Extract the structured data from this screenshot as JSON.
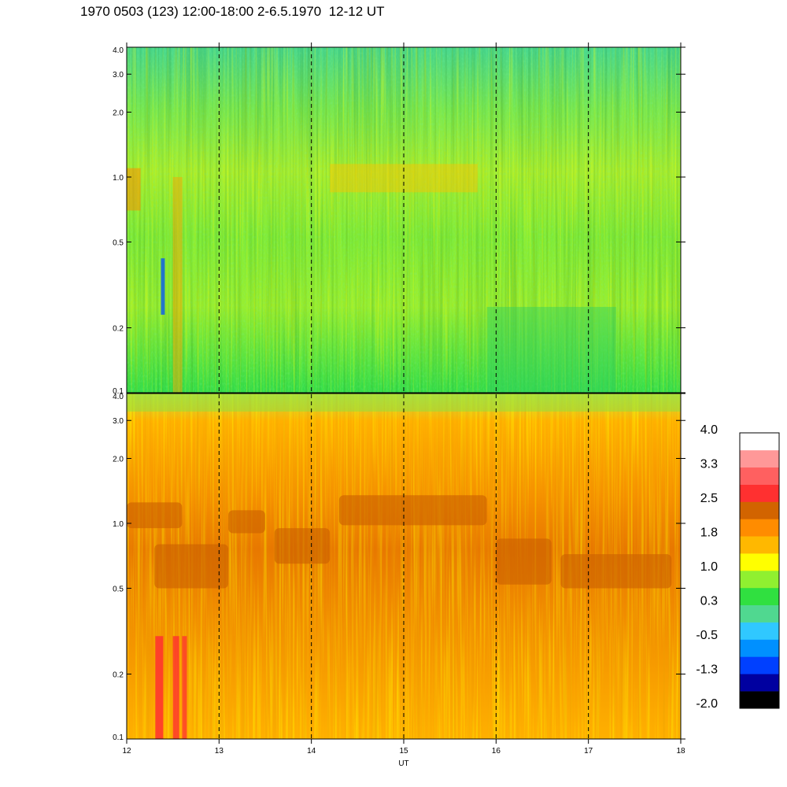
{
  "title": "1970 0503 (123) 12:00-18:00 2-6.5.1970  12-12 UT",
  "chart_data": {
    "type": "heatmap",
    "xlabel": "UT",
    "x_ticks": [
      "12",
      "13",
      "14",
      "15",
      "16",
      "17",
      "18"
    ],
    "xlim": [
      12,
      18
    ],
    "y_scale": "log",
    "ylim": [
      0.1,
      4.0
    ],
    "dashed_vlines": [
      13,
      14,
      15,
      16,
      17
    ],
    "panels": [
      {
        "id": "top",
        "y_ticks": [
          {
            "value": 0.1,
            "label": "0.1"
          },
          {
            "value": 0.2,
            "label": "0.2"
          },
          {
            "value": 0.5,
            "label": "0.5"
          },
          {
            "value": 1.0,
            "label": "1.0"
          },
          {
            "value": 2.0,
            "label": "2.0"
          },
          {
            "value": 3.0,
            "label": "3.0"
          },
          {
            "value": 4.0,
            "label": "4.0"
          }
        ]
      },
      {
        "id": "bottom",
        "y_ticks": [
          {
            "value": 0.1,
            "label": "0.1"
          },
          {
            "value": 0.2,
            "label": "0.2"
          },
          {
            "value": 0.5,
            "label": "0.5"
          },
          {
            "value": 1.0,
            "label": "1.0"
          },
          {
            "value": 2.0,
            "label": "2.0"
          },
          {
            "value": 3.0,
            "label": "3.0"
          },
          {
            "value": 4.0,
            "label": "4.0"
          }
        ]
      }
    ],
    "colorbar": {
      "colors": [
        "#000000",
        "#0000a0",
        "#0040ff",
        "#0090ff",
        "#30c8ff",
        "#50d890",
        "#30e040",
        "#90f030",
        "#ffff00",
        "#ffb800",
        "#ff8c00",
        "#d26400",
        "#ff3030",
        "#ff6060",
        "#ff9898",
        "#ffffff"
      ],
      "labels": [
        "4.0",
        "3.3",
        "2.5",
        "1.8",
        "1.0",
        "0.3",
        "-0.5",
        "-1.3",
        "-2.0"
      ]
    }
  }
}
